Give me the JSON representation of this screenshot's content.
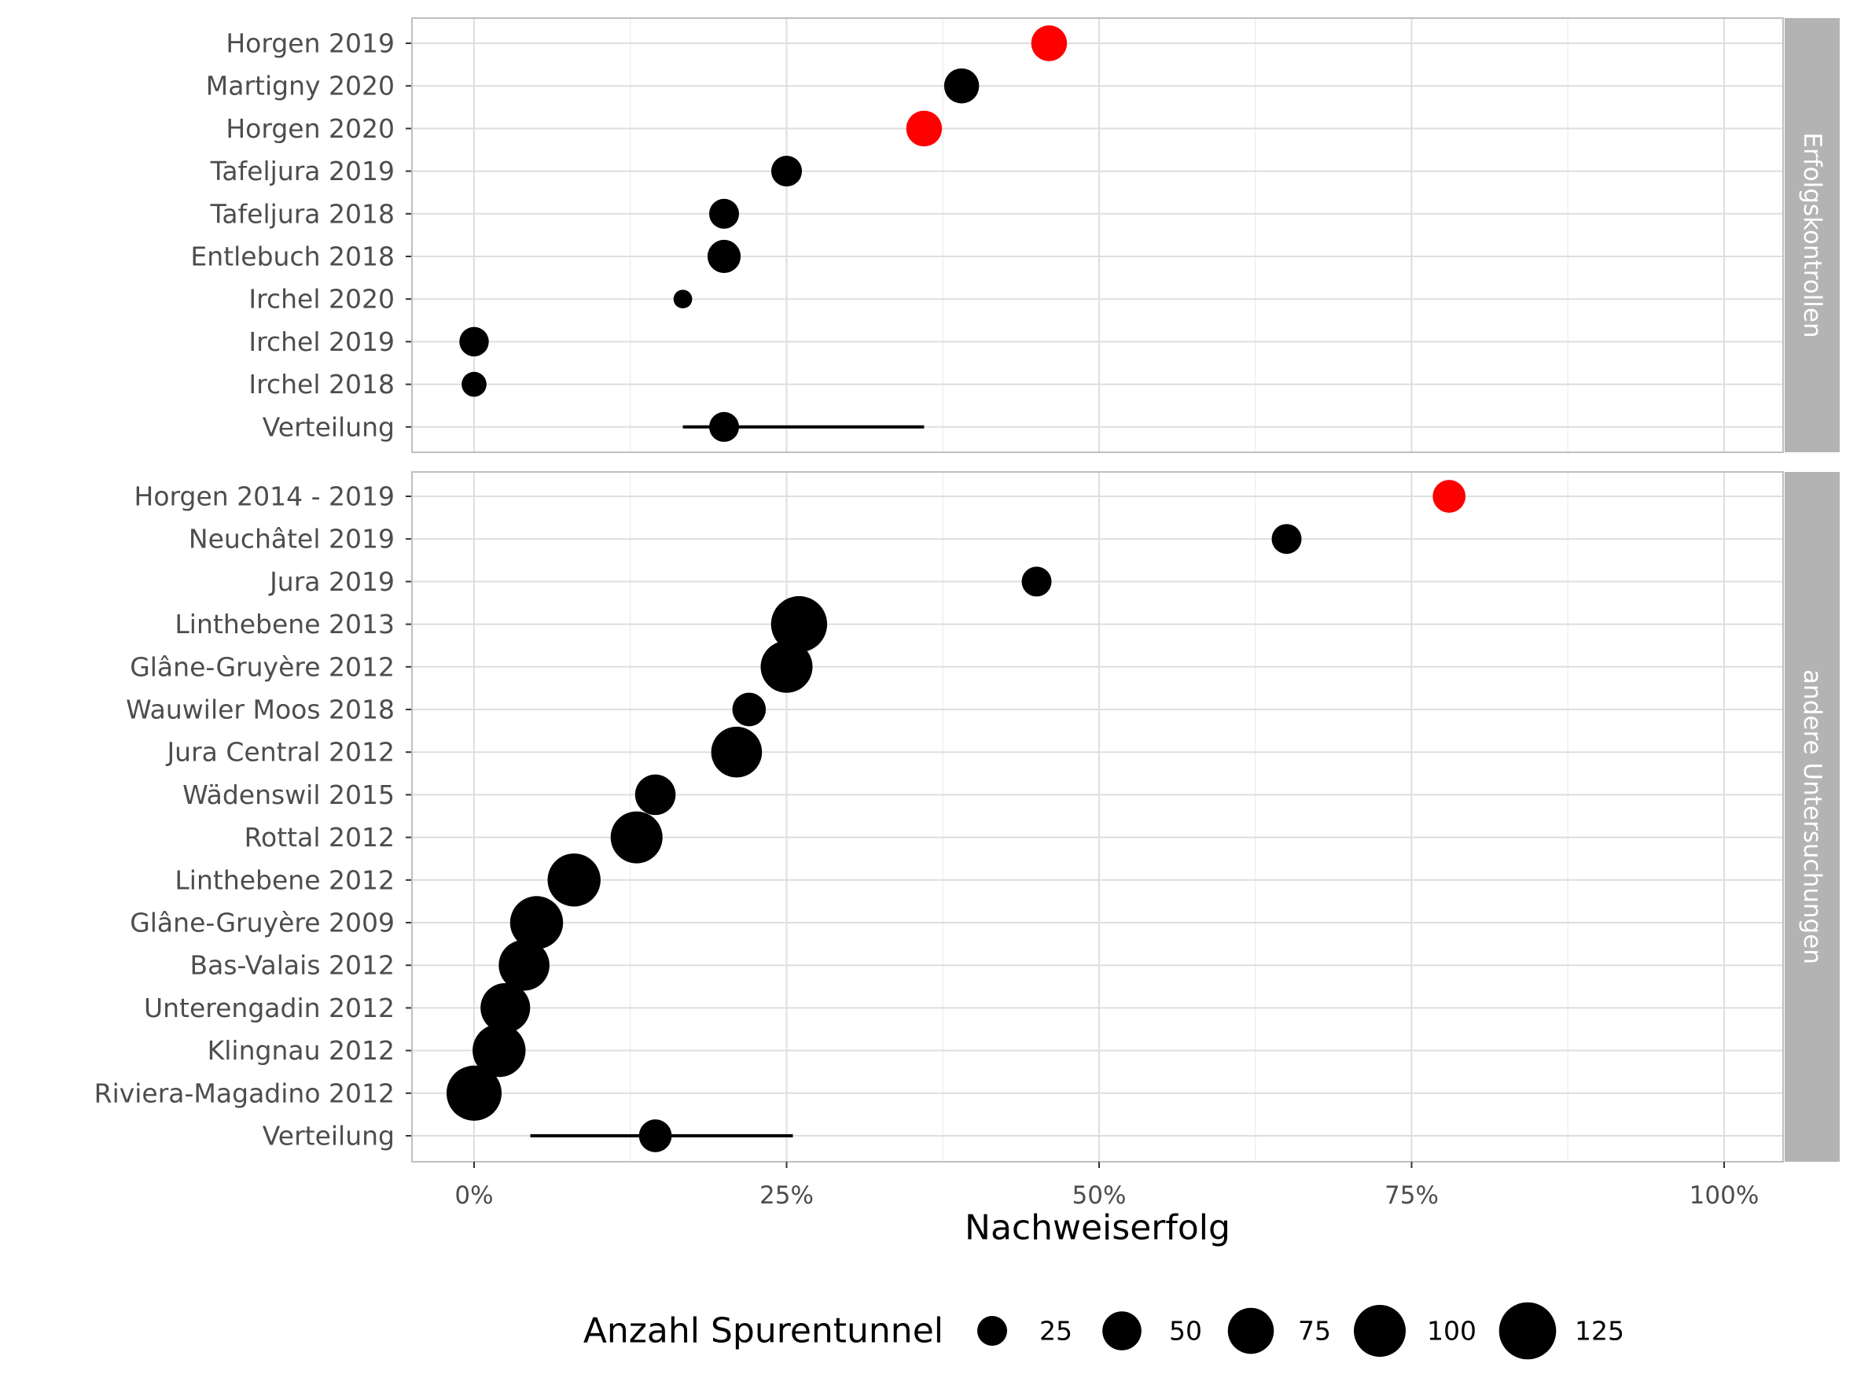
{
  "chart_data": {
    "type": "scatter",
    "xlabel": "Nachweiserfolg",
    "xlim": [
      0,
      1
    ],
    "x_ticks": [
      "0%",
      "25%",
      "50%",
      "75%",
      "100%"
    ],
    "grid": true,
    "legend": {
      "title": "Anzahl Spurentunnel",
      "placement": "bottom",
      "sizes": [
        25,
        50,
        75,
        100,
        125
      ],
      "labels": [
        "25",
        "50",
        "75",
        "100",
        "125"
      ]
    },
    "colors": {
      "highlight": "#ff0000",
      "default": "#000000"
    },
    "panels": [
      {
        "strip_label": "Erfolgskontrollen",
        "points": [
          {
            "label": "Horgen 2019",
            "x": 0.46,
            "n": 40,
            "color": "highlight"
          },
          {
            "label": "Martigny 2020",
            "x": 0.39,
            "n": 38,
            "color": "default"
          },
          {
            "label": "Horgen 2020",
            "x": 0.36,
            "n": 40,
            "color": "highlight"
          },
          {
            "label": "Tafeljura 2019",
            "x": 0.25,
            "n": 27,
            "color": "default"
          },
          {
            "label": "Tafeljura 2018",
            "x": 0.2,
            "n": 25,
            "color": "default"
          },
          {
            "label": "Entlebuch 2018",
            "x": 0.2,
            "n": 33,
            "color": "default"
          },
          {
            "label": "Irchel 2020",
            "x": 0.167,
            "n": 6,
            "color": "default"
          },
          {
            "label": "Irchel 2019",
            "x": 0.0,
            "n": 24,
            "color": "default"
          },
          {
            "label": "Irchel 2018",
            "x": 0.0,
            "n": 15,
            "color": "default"
          }
        ],
        "summary": {
          "label": "Verteilung",
          "x": 0.2,
          "low": 0.167,
          "high": 0.36,
          "n": 25
        }
      },
      {
        "strip_label": "andere Untersuchungen",
        "points": [
          {
            "label": "Horgen 2014 - 2019",
            "x": 0.78,
            "n": 32,
            "color": "highlight"
          },
          {
            "label": "Neuchâtel 2019",
            "x": 0.65,
            "n": 25,
            "color": "default"
          },
          {
            "label": "Jura 2019",
            "x": 0.45,
            "n": 25,
            "color": "default"
          },
          {
            "label": "Linthebene 2013",
            "x": 0.26,
            "n": 120,
            "color": "default"
          },
          {
            "label": "Glâne-Gruyère 2012",
            "x": 0.25,
            "n": 100,
            "color": "default"
          },
          {
            "label": "Wauwiler Moos 2018",
            "x": 0.22,
            "n": 34,
            "color": "default"
          },
          {
            "label": "Jura Central 2012",
            "x": 0.21,
            "n": 95,
            "color": "default"
          },
          {
            "label": "Wädenswil 2015",
            "x": 0.145,
            "n": 55,
            "color": "default"
          },
          {
            "label": "Rottal 2012",
            "x": 0.13,
            "n": 100,
            "color": "default"
          },
          {
            "label": "Linthebene 2012",
            "x": 0.08,
            "n": 105,
            "color": "default"
          },
          {
            "label": "Glâne-Gruyère 2009",
            "x": 0.05,
            "n": 105,
            "color": "default"
          },
          {
            "label": "Bas-Valais 2012",
            "x": 0.04,
            "n": 95,
            "color": "default"
          },
          {
            "label": "Unterengadin 2012",
            "x": 0.025,
            "n": 90,
            "color": "default"
          },
          {
            "label": "Klingnau 2012",
            "x": 0.02,
            "n": 105,
            "color": "default"
          },
          {
            "label": "Riviera-Magadino 2012",
            "x": 0.0,
            "n": 115,
            "color": "default"
          }
        ],
        "summary": {
          "label": "Verteilung",
          "x": 0.145,
          "low": 0.045,
          "high": 0.255,
          "n": 32
        }
      }
    ]
  }
}
